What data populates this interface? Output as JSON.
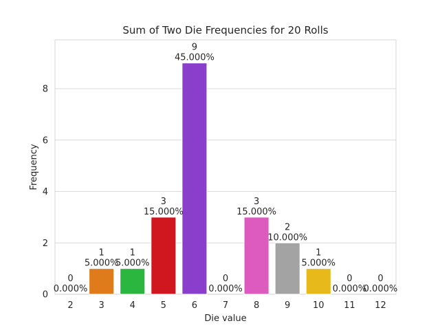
{
  "chart_data": {
    "type": "bar",
    "title": "Sum of Two Die Frequencies for 20 Rolls",
    "xlabel": "Die value",
    "ylabel": "Frequency",
    "ylim": [
      0,
      9.9
    ],
    "yticks": [
      0,
      2,
      4,
      6,
      8
    ],
    "grid": "horizontal",
    "categories": [
      "2",
      "3",
      "4",
      "5",
      "6",
      "7",
      "8",
      "9",
      "10",
      "11",
      "12"
    ],
    "values": [
      0,
      1,
      1,
      3,
      9,
      0,
      3,
      2,
      1,
      0,
      0
    ],
    "percent_labels": [
      "0.000%",
      "5.000%",
      "5.000%",
      "15.000%",
      "45.000%",
      "0.000%",
      "15.000%",
      "10.000%",
      "5.000%",
      "0.000%",
      "0.000%"
    ],
    "colors": [
      "#1f77b4",
      "#e07b1c",
      "#2bb63f",
      "#d0161f",
      "#8a3fcc",
      "#8c564b",
      "#dd5bbf",
      "#a3a3a3",
      "#e8b91a",
      "#17becf",
      "#1f77b4"
    ]
  }
}
